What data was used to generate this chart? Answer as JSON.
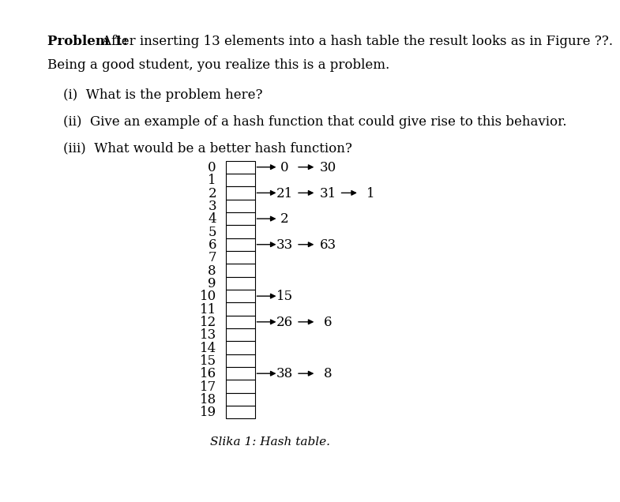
{
  "title_bold": "Problem 1:",
  "title_rest": " After inserting 13 elements into a hash table the result looks as in Figure ??.",
  "line2": "Being a good student, you realize this is a problem.",
  "q1": "(i)  What is the problem here?",
  "q2": "(ii)  Give an example of a hash function that could give rise to this behavior.",
  "q3": "(iii)  What would be a better hash function?",
  "caption": "Slika 1: Hash table.",
  "num_slots": 20,
  "chains": {
    "0": [
      "0",
      "30"
    ],
    "2": [
      "21",
      "31",
      "1"
    ],
    "4": [
      "2"
    ],
    "6": [
      "33",
      "63"
    ],
    "10": [
      "15"
    ],
    "12": [
      "26",
      "6"
    ],
    "16": [
      "38",
      "8"
    ]
  },
  "title_color": "#000000",
  "text_color": "#000000",
  "box_color": "#000000",
  "bg_color": "#ffffff",
  "title_fontsize": 12,
  "body_fontsize": 12,
  "table_fontsize": 12
}
